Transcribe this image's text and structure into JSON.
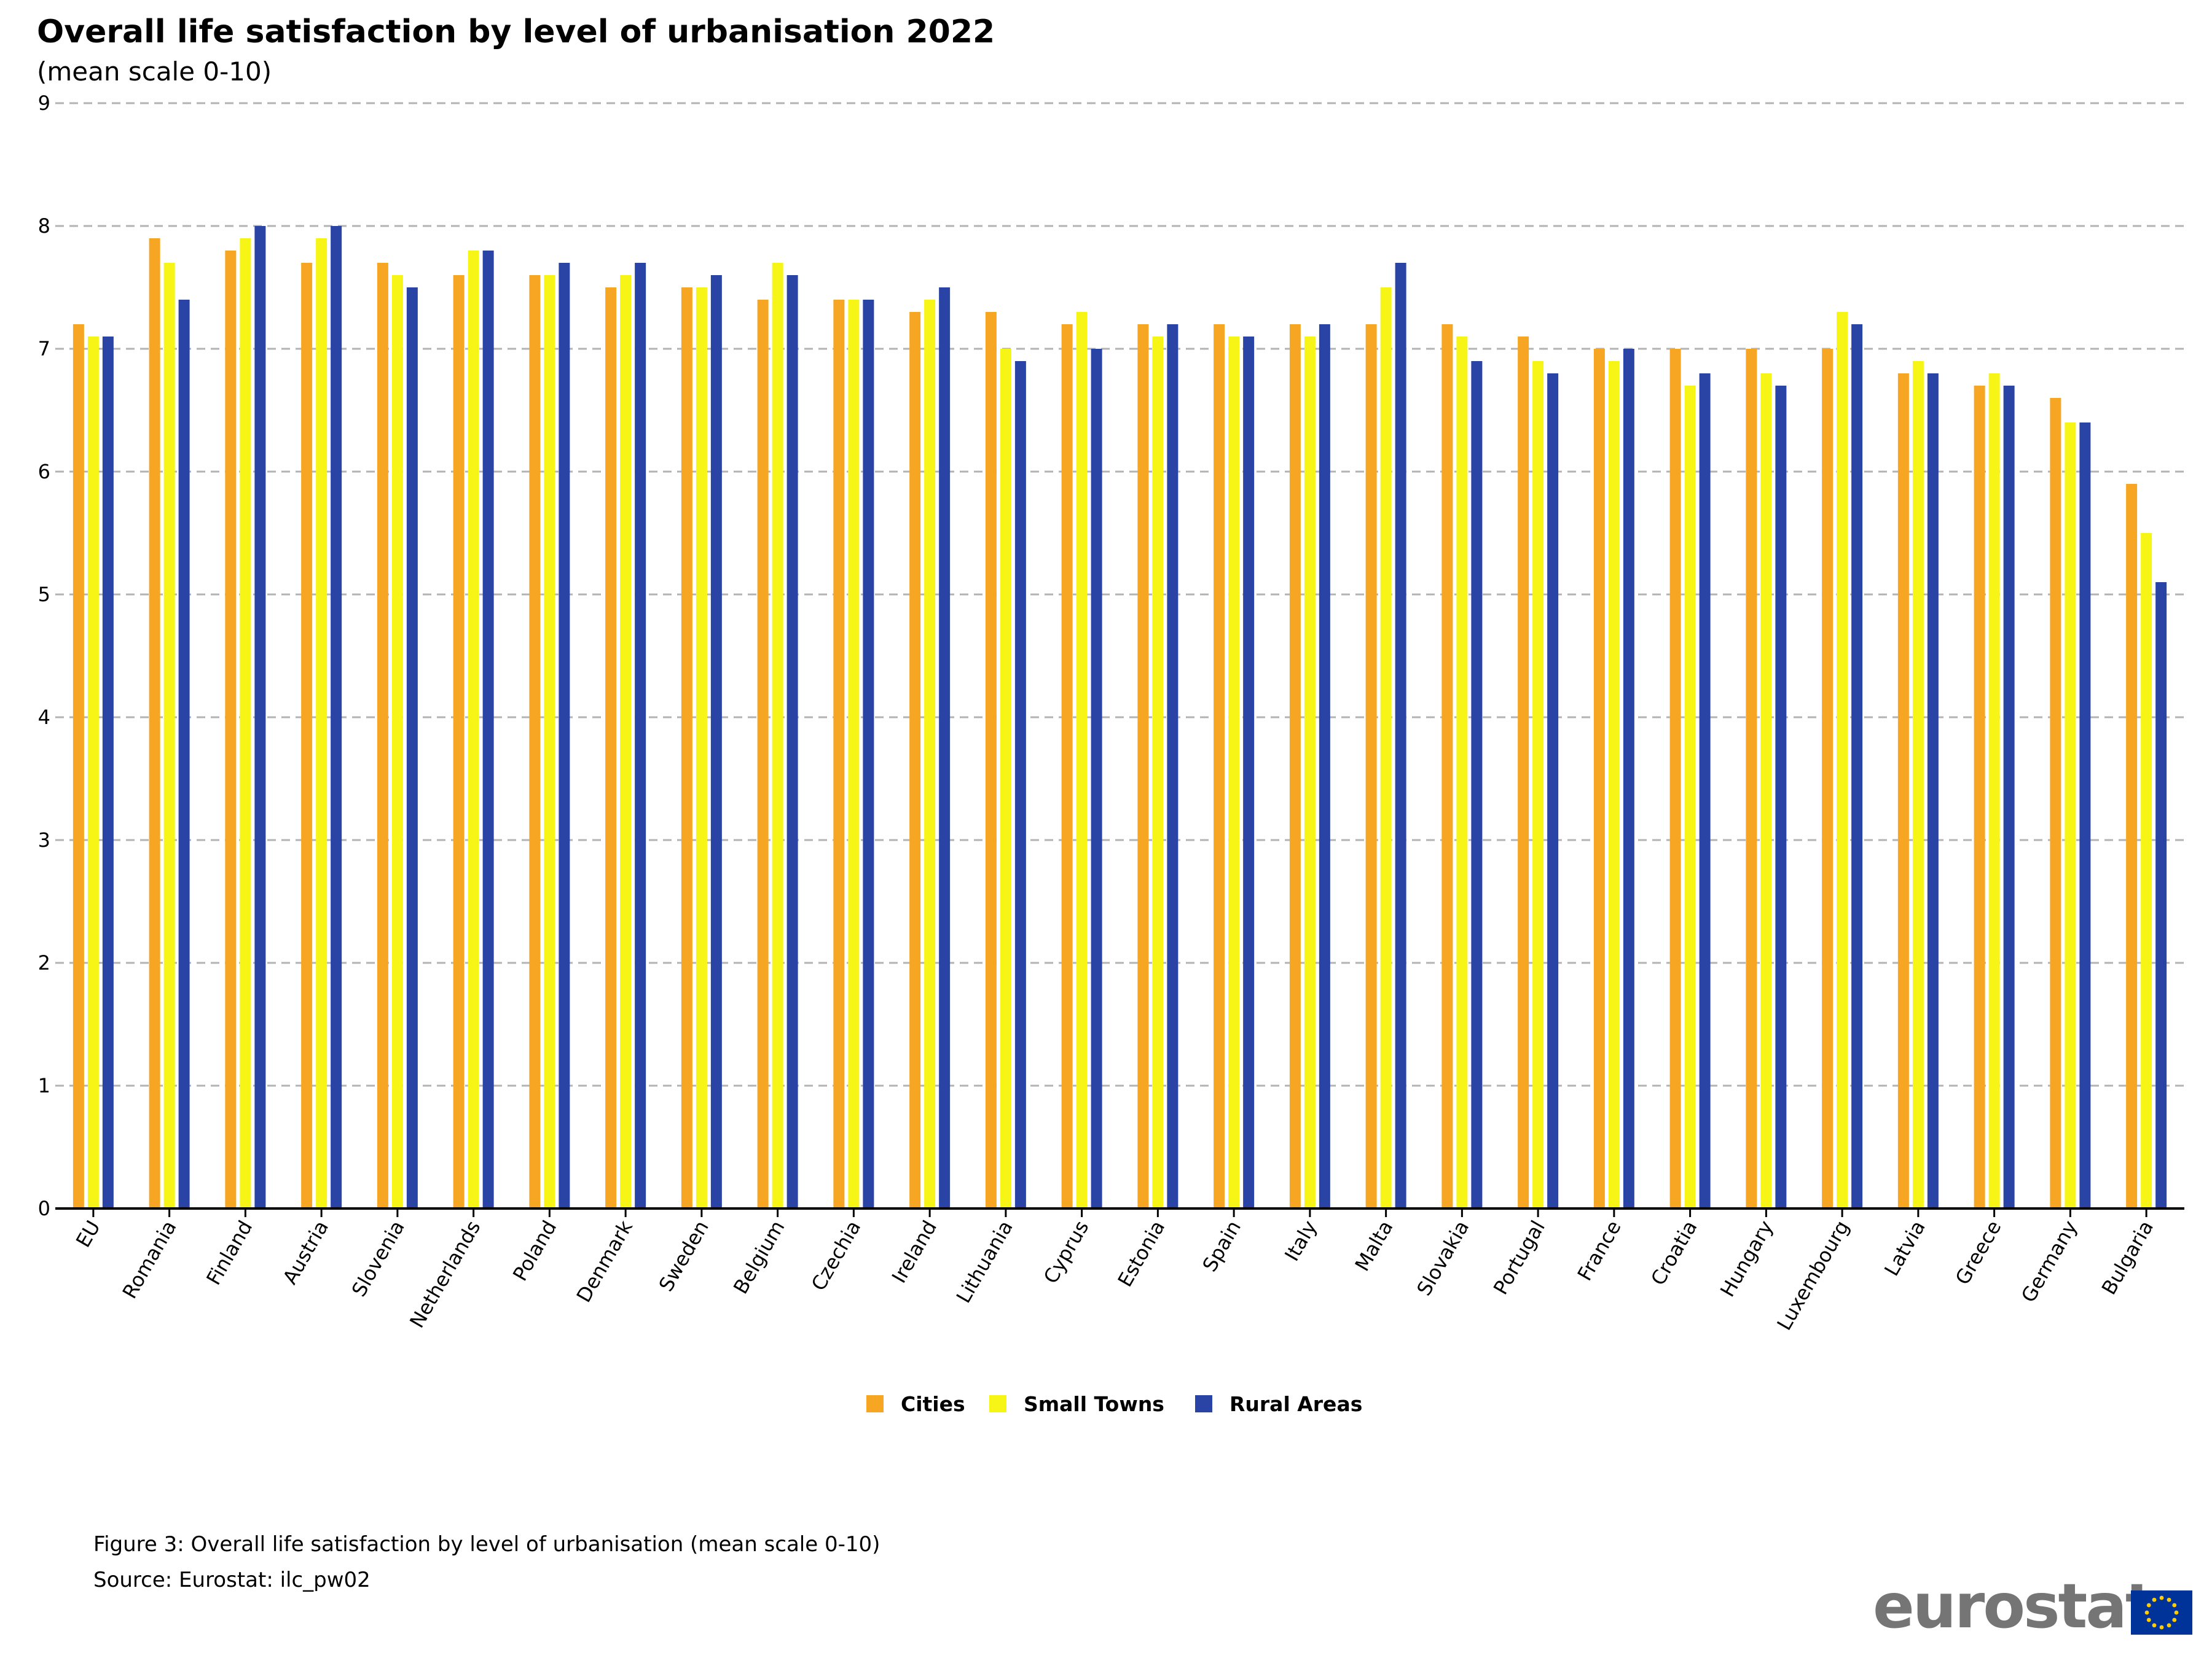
{
  "chart_data": {
    "type": "bar",
    "title": "Overall life satisfaction by level of urbanisation 2022",
    "subtitle": "(mean scale 0-10)",
    "xlabel": "",
    "ylabel": "",
    "ylim": [
      0,
      9
    ],
    "yticks": [
      "0",
      "1",
      "2",
      "3",
      "4",
      "5",
      "6",
      "7",
      "8",
      "9"
    ],
    "grid": true,
    "legend_position": "bottom-center",
    "categories": [
      "EU",
      "Romania",
      "Finland",
      "Austria",
      "Slovenia",
      "Netherlands",
      "Poland",
      "Denmark",
      "Sweden",
      "Belgium",
      "Czechia",
      "Ireland",
      "Lithuania",
      "Cyprus",
      "Estonia",
      "Spain",
      "Italy",
      "Malta",
      "Slovakia",
      "Portugal",
      "France",
      "Croatia",
      "Hungary",
      "Luxembourg",
      "Latvia",
      "Greece",
      "Germany",
      "Bulgaria"
    ],
    "series": [
      {
        "name": "Cities",
        "color": "#F6A623",
        "values": [
          7.2,
          7.9,
          7.8,
          7.7,
          7.7,
          7.6,
          7.6,
          7.5,
          7.5,
          7.4,
          7.4,
          7.3,
          7.3,
          7.2,
          7.2,
          7.2,
          7.2,
          7.2,
          7.2,
          7.1,
          7.0,
          7.0,
          7.0,
          7.0,
          6.8,
          6.7,
          6.6,
          5.9
        ]
      },
      {
        "name": "Small Towns",
        "color": "#F7F516",
        "values": [
          7.1,
          7.7,
          7.9,
          7.9,
          7.6,
          7.8,
          7.6,
          7.6,
          7.5,
          7.7,
          7.4,
          7.4,
          7.0,
          7.3,
          7.1,
          7.1,
          7.1,
          7.5,
          7.1,
          6.9,
          6.9,
          6.7,
          6.8,
          7.3,
          6.9,
          6.8,
          6.4,
          5.5
        ]
      },
      {
        "name": "Rural Areas",
        "color": "#2A44A6",
        "values": [
          7.1,
          7.4,
          8.0,
          8.0,
          7.5,
          7.8,
          7.7,
          7.7,
          7.6,
          7.6,
          7.4,
          7.5,
          6.9,
          7.0,
          7.2,
          7.1,
          7.2,
          7.7,
          6.9,
          6.8,
          7.0,
          6.8,
          6.7,
          7.2,
          6.8,
          6.7,
          6.4,
          5.1
        ]
      }
    ]
  },
  "footer": {
    "figure_note": "Figure 3: Overall life satisfaction by level of urbanisation (mean scale 0-10)",
    "source": "Source: Eurostat: ilc_pw02"
  },
  "logo": {
    "text": "eurostat",
    "flag_color": "#003399",
    "star_color": "#FFCC00"
  }
}
